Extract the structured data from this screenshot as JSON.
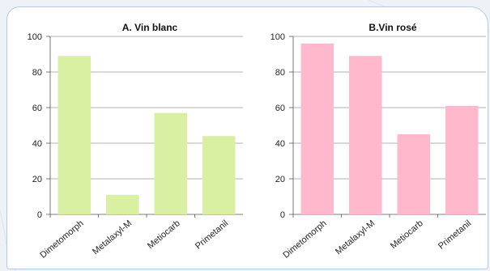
{
  "chart_data": [
    {
      "type": "bar",
      "title": "A. Vin blanc",
      "categories": [
        "Dimetomorph",
        "Metalaxyl-M",
        "Metiocarb",
        "Primetanil"
      ],
      "values": [
        89,
        11,
        57,
        44
      ],
      "ylim": [
        0,
        100
      ],
      "yticks": [
        0,
        20,
        40,
        60,
        80,
        100
      ],
      "grid": true,
      "color": "#d9f0a3"
    },
    {
      "type": "bar",
      "title": "B.Vin rosé",
      "categories": [
        "Dimetomorph",
        "Metalaxyl-M",
        "Metiocarb",
        "Primetanil"
      ],
      "values": [
        96,
        89,
        45,
        61
      ],
      "ylim": [
        0,
        100
      ],
      "yticks": [
        0,
        20,
        40,
        60,
        80,
        100
      ],
      "grid": true,
      "color": "#ffb8cc"
    }
  ]
}
